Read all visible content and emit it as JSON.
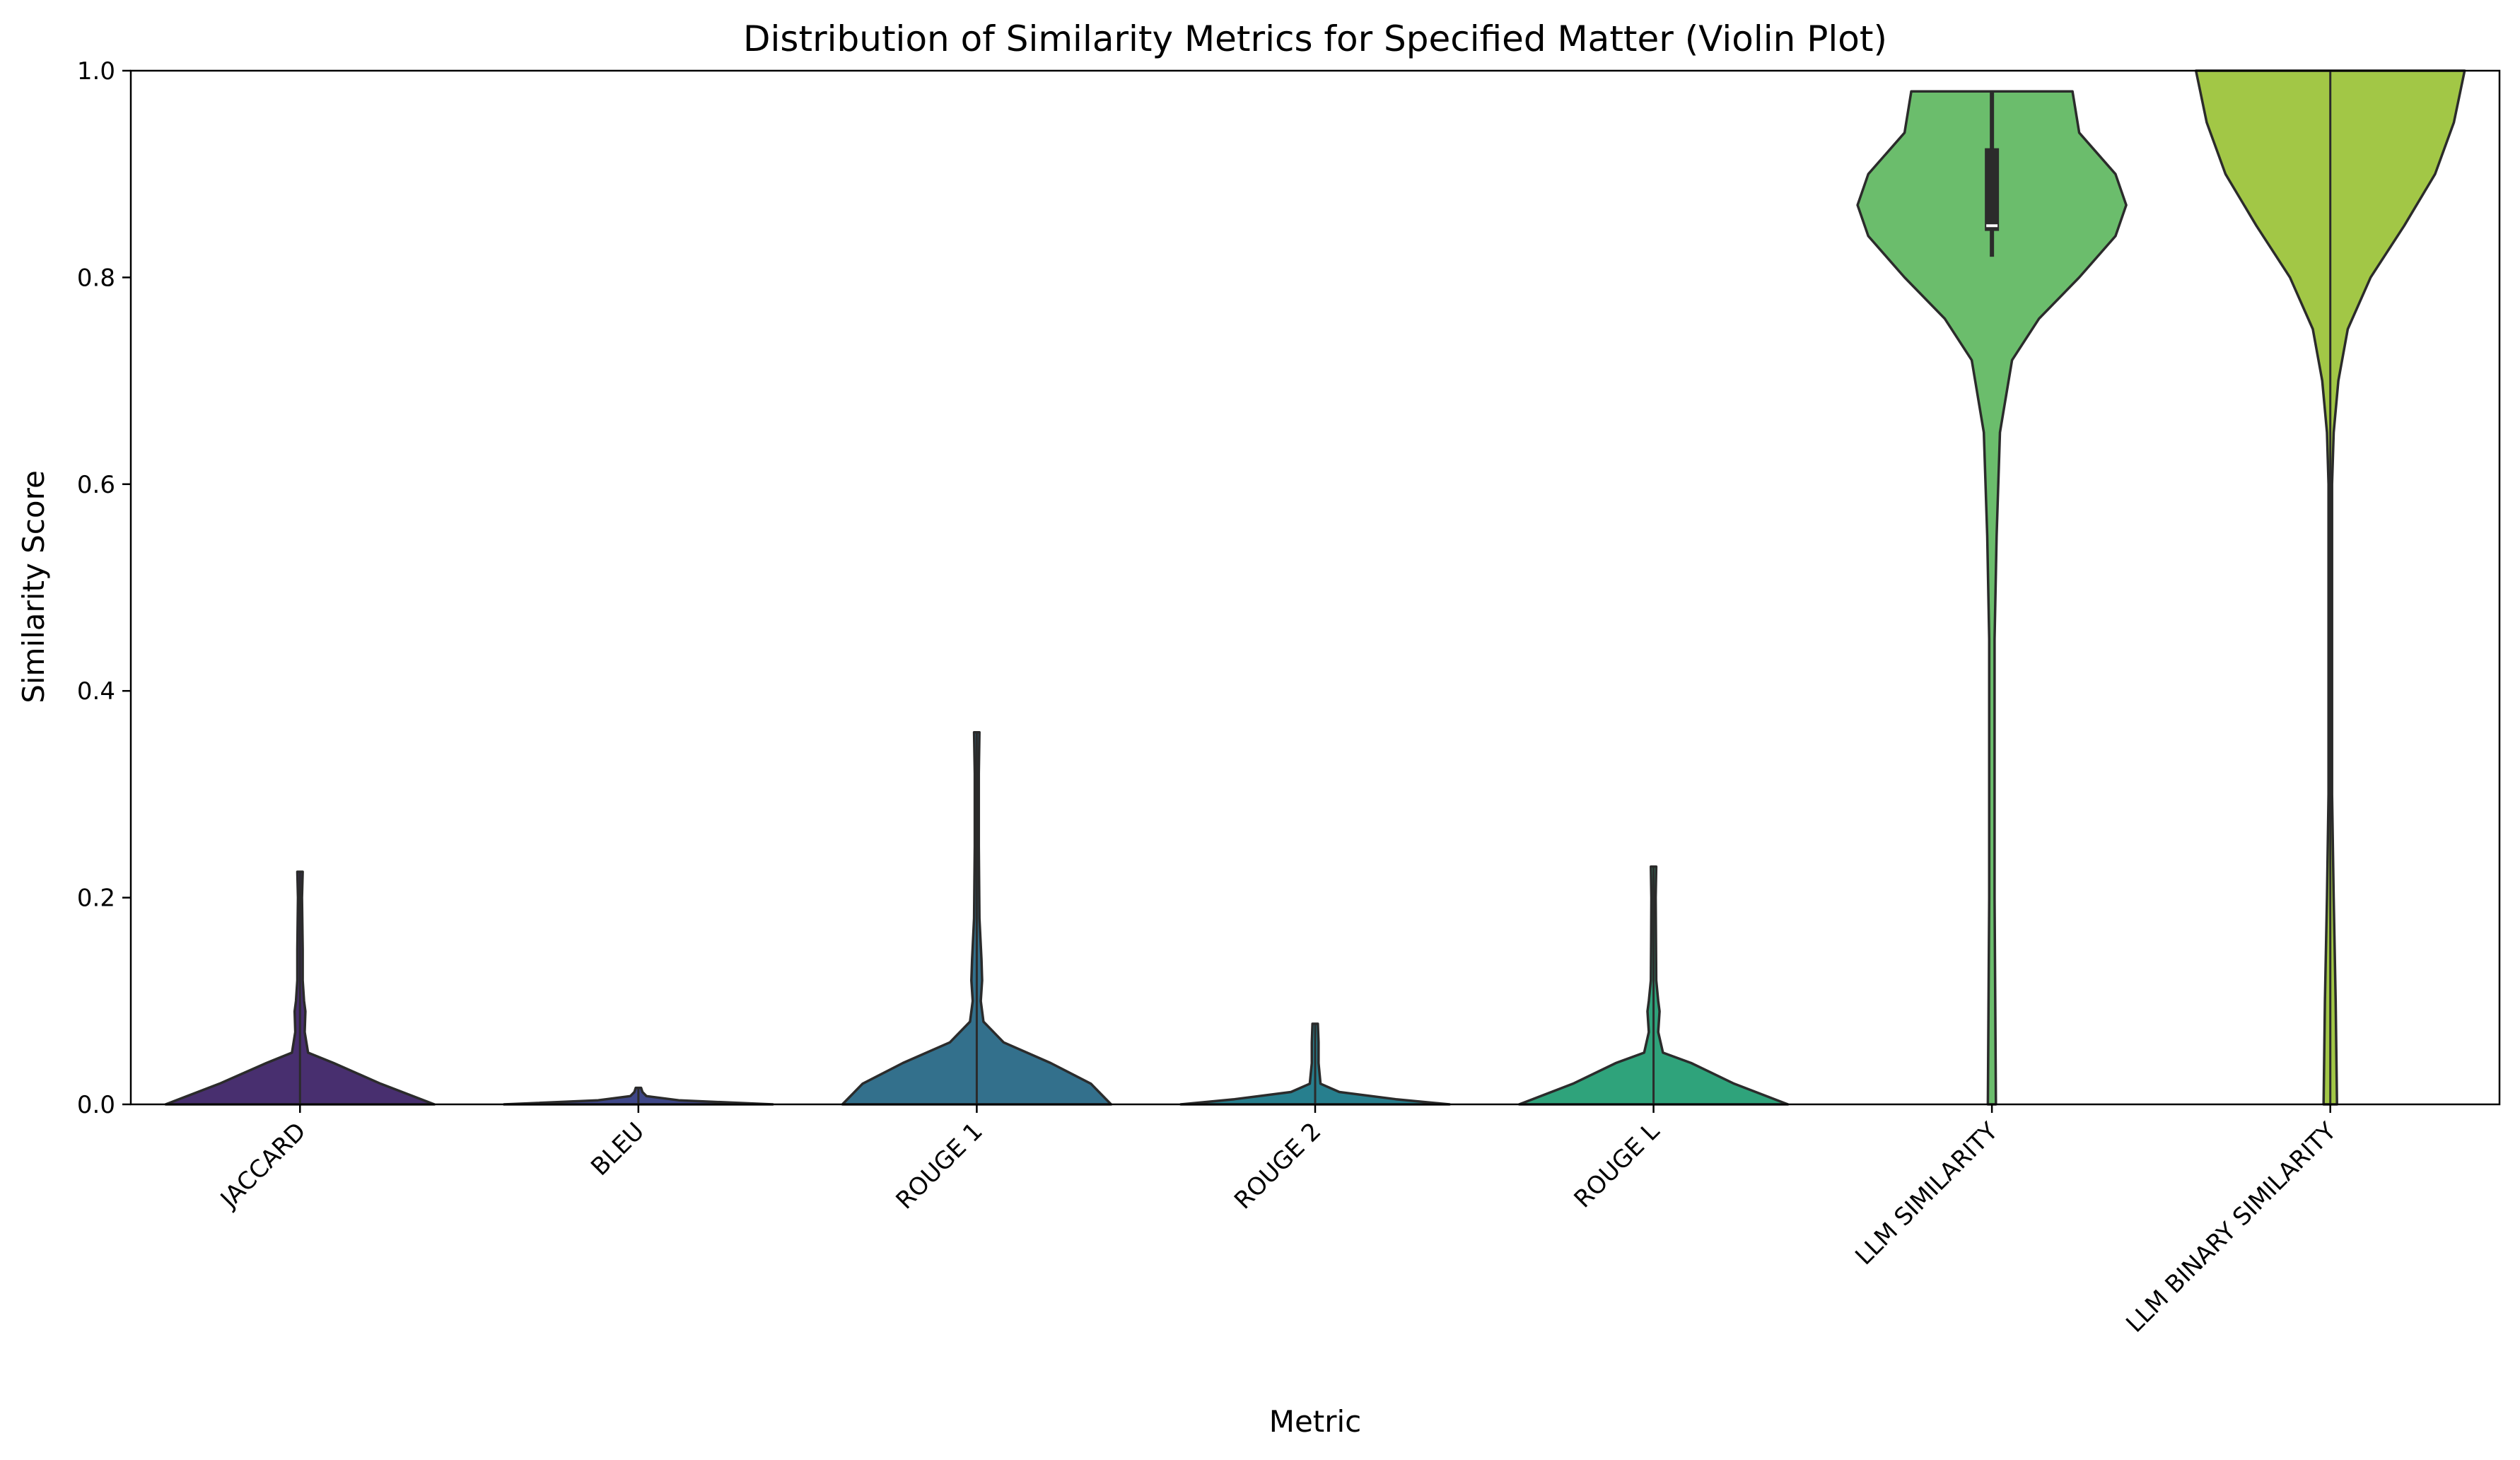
{
  "chart_data": {
    "type": "violin",
    "title": "Distribution of Similarity Metrics for Specified Matter (Violin Plot)",
    "xlabel": "Metric",
    "ylabel": "Similarity Score",
    "ylim": [
      0,
      1
    ],
    "yticks": [
      "0.0",
      "0.2",
      "0.4",
      "0.6",
      "0.8",
      "1.0"
    ],
    "grid": false,
    "legend": "none",
    "categories": [
      "JACCARD",
      "BLEU",
      "ROUGE 1",
      "ROUGE 2",
      "ROUGE L",
      "LLM SIMILARITY",
      "LLM BINARY SIMILARITY"
    ],
    "colors": [
      "#482f6f",
      "#3f4789",
      "#33708c",
      "#277f8e",
      "#2fa37b",
      "#6bbd6c",
      "#a2c746"
    ],
    "violins": [
      {
        "name": "JACCARD",
        "range": [
          0.0,
          0.225
        ],
        "density": [
          [
            0.0,
            1.0
          ],
          [
            0.02,
            0.6
          ],
          [
            0.04,
            0.25
          ],
          [
            0.05,
            0.06
          ],
          [
            0.07,
            0.035
          ],
          [
            0.09,
            0.04
          ],
          [
            0.1,
            0.03
          ],
          [
            0.12,
            0.02
          ],
          [
            0.15,
            0.02
          ],
          [
            0.2,
            0.015
          ],
          [
            0.225,
            0.02
          ]
        ]
      },
      {
        "name": "BLEU",
        "range": [
          0.0,
          0.016
        ],
        "density": [
          [
            0.0,
            1.0
          ],
          [
            0.004,
            0.3
          ],
          [
            0.008,
            0.06
          ],
          [
            0.012,
            0.03
          ],
          [
            0.016,
            0.02
          ]
        ]
      },
      {
        "name": "ROUGE 1",
        "range": [
          0.0,
          0.36
        ],
        "density": [
          [
            0.0,
            1.0
          ],
          [
            0.02,
            0.85
          ],
          [
            0.04,
            0.55
          ],
          [
            0.06,
            0.2
          ],
          [
            0.08,
            0.05
          ],
          [
            0.1,
            0.03
          ],
          [
            0.12,
            0.04
          ],
          [
            0.14,
            0.035
          ],
          [
            0.18,
            0.02
          ],
          [
            0.25,
            0.015
          ],
          [
            0.32,
            0.015
          ],
          [
            0.36,
            0.02
          ]
        ]
      },
      {
        "name": "ROUGE 2",
        "range": [
          0.0,
          0.078
        ],
        "density": [
          [
            0.0,
            1.0
          ],
          [
            0.005,
            0.6
          ],
          [
            0.012,
            0.18
          ],
          [
            0.02,
            0.04
          ],
          [
            0.04,
            0.025
          ],
          [
            0.06,
            0.025
          ],
          [
            0.078,
            0.02
          ]
        ]
      },
      {
        "name": "ROUGE L",
        "range": [
          0.0,
          0.23
        ],
        "density": [
          [
            0.0,
            1.0
          ],
          [
            0.02,
            0.6
          ],
          [
            0.04,
            0.28
          ],
          [
            0.05,
            0.07
          ],
          [
            0.07,
            0.035
          ],
          [
            0.09,
            0.045
          ],
          [
            0.1,
            0.035
          ],
          [
            0.12,
            0.02
          ],
          [
            0.16,
            0.018
          ],
          [
            0.2,
            0.016
          ],
          [
            0.23,
            0.02
          ]
        ]
      },
      {
        "name": "LLM SIMILARITY",
        "range": [
          0.0,
          0.98
        ],
        "quartiles": [
          0.845,
          0.85,
          0.925
        ],
        "whiskers": [
          0.82,
          0.98
        ],
        "density": [
          [
            0.0,
            0.03
          ],
          [
            0.2,
            0.02
          ],
          [
            0.45,
            0.02
          ],
          [
            0.55,
            0.035
          ],
          [
            0.65,
            0.06
          ],
          [
            0.72,
            0.15
          ],
          [
            0.76,
            0.35
          ],
          [
            0.8,
            0.65
          ],
          [
            0.84,
            0.92
          ],
          [
            0.87,
            1.0
          ],
          [
            0.9,
            0.92
          ],
          [
            0.94,
            0.65
          ],
          [
            0.98,
            0.6
          ]
        ]
      },
      {
        "name": "LLM BINARY SIMILARITY",
        "range": [
          0.0,
          1.0
        ],
        "density": [
          [
            0.0,
            0.05
          ],
          [
            0.1,
            0.04
          ],
          [
            0.2,
            0.025
          ],
          [
            0.3,
            0.012
          ],
          [
            0.4,
            0.01
          ],
          [
            0.5,
            0.012
          ],
          [
            0.6,
            0.012
          ],
          [
            0.65,
            0.025
          ],
          [
            0.7,
            0.06
          ],
          [
            0.75,
            0.13
          ],
          [
            0.8,
            0.3
          ],
          [
            0.85,
            0.55
          ],
          [
            0.9,
            0.78
          ],
          [
            0.95,
            0.92
          ],
          [
            1.0,
            1.0
          ]
        ]
      }
    ]
  }
}
